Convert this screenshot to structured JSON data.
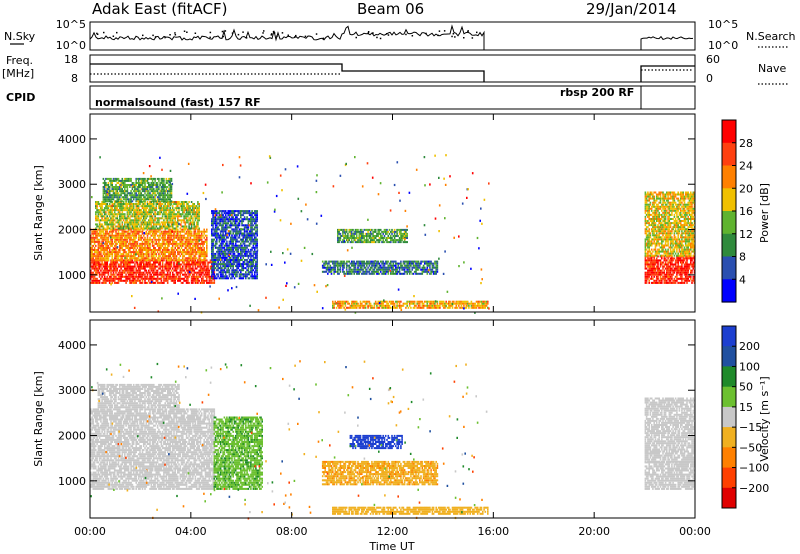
{
  "header": {
    "station": "Adak East (fitACF)",
    "beam": "Beam 06",
    "date": "29/Jan/2014"
  },
  "strips": {
    "nsky_label": "N.Sky",
    "nsky_ticks": [
      "10^5",
      "10^0"
    ],
    "nsearch_label": "N.Search",
    "freq_label_line1": "Freq.",
    "freq_label_line2": "[MHz]",
    "freq_ticks": [
      "18",
      "8"
    ],
    "nave_ticks": [
      "60",
      "0"
    ],
    "nave_label": "Nave",
    "cpid_label": "CPID",
    "cpid_programs": [
      "normalsound (fast) 157 RF",
      "rbsp 200 RF"
    ]
  },
  "colors": {
    "power_scale": [
      "#0000ff",
      "#2a4fb0",
      "#2f8a3c",
      "#5fb32f",
      "#f0c000",
      "#ff8000",
      "#ff4010",
      "#ff0000"
    ],
    "velocity_scale": [
      "#1c3fd0",
      "#2050a0",
      "#1f8a2a",
      "#6cc030",
      "#c8c8c8",
      "#f0b020",
      "#ff8000",
      "#ff4000",
      "#e00000"
    ]
  },
  "chart_data": [
    {
      "type": "heatmap",
      "panel": "power",
      "ylabel": "Slant Range [km]",
      "xlabel": "Time UT",
      "x_ticks": [
        "00:00",
        "04:00",
        "08:00",
        "12:00",
        "16:00",
        "20:00",
        "00:00"
      ],
      "y_ticks": [
        "1000",
        "2000",
        "3000",
        "4000"
      ],
      "xlim_hours": [
        0,
        24
      ],
      "ylim_km": [
        180,
        4550
      ],
      "colorbar_title": "Power [dB]",
      "colorbar_ticks": [
        "28",
        "24",
        "20",
        "16",
        "12",
        "8",
        "4"
      ],
      "data_gap_hours": [
        15.8,
        22
      ],
      "echo_regions": [
        {
          "t0": 0.0,
          "t1": 4.9,
          "r0": 800,
          "r1": 1300,
          "level": 28
        },
        {
          "t0": 0.0,
          "t1": 4.6,
          "r0": 1300,
          "r1": 2000,
          "level": 22
        },
        {
          "t0": 0.2,
          "t1": 4.3,
          "r0": 2000,
          "r1": 2600,
          "level": 16
        },
        {
          "t0": 0.5,
          "t1": 3.2,
          "r0": 2600,
          "r1": 3100,
          "level": 12
        },
        {
          "t0": 4.8,
          "t1": 6.6,
          "r0": 900,
          "r1": 2400,
          "level": 6
        },
        {
          "t0": 9.2,
          "t1": 13.8,
          "r0": 1000,
          "r1": 1300,
          "level": 8
        },
        {
          "t0": 9.8,
          "t1": 12.6,
          "r0": 1700,
          "r1": 2000,
          "level": 12
        },
        {
          "t0": 9.6,
          "t1": 15.8,
          "r0": 250,
          "r1": 400,
          "level": 20
        },
        {
          "t0": 22.0,
          "t1": 24.0,
          "r0": 800,
          "r1": 1400,
          "level": 28
        },
        {
          "t0": 22.0,
          "t1": 24.0,
          "r0": 1400,
          "r1": 2800,
          "level": 18
        }
      ]
    },
    {
      "type": "heatmap",
      "panel": "velocity",
      "ylabel": "Slant Range [km]",
      "xlabel": "Time UT",
      "x_ticks": [
        "00:00",
        "04:00",
        "08:00",
        "12:00",
        "16:00",
        "20:00",
        "00:00"
      ],
      "y_ticks": [
        "1000",
        "2000",
        "3000",
        "4000"
      ],
      "xlim_hours": [
        0,
        24
      ],
      "ylim_km": [
        180,
        4550
      ],
      "colorbar_title": "Velocity [m s⁻¹]",
      "colorbar_ticks": [
        "200",
        "100",
        "50",
        "15",
        "−15",
        "−50",
        "−100",
        "−200"
      ],
      "data_gap_hours": [
        15.8,
        22
      ],
      "echo_regions": [
        {
          "t0": 0.0,
          "t1": 4.9,
          "r0": 800,
          "r1": 2600,
          "level": 0
        },
        {
          "t0": 0.3,
          "t1": 3.5,
          "r0": 2600,
          "r1": 3100,
          "level": 0
        },
        {
          "t0": 4.9,
          "t1": 6.8,
          "r0": 800,
          "r1": 2400,
          "level": 40
        },
        {
          "t0": 9.2,
          "t1": 13.8,
          "r0": 900,
          "r1": 1400,
          "level": -40
        },
        {
          "t0": 10.3,
          "t1": 12.4,
          "r0": 1700,
          "r1": 2000,
          "level": 180
        },
        {
          "t0": 9.6,
          "t1": 15.8,
          "r0": 250,
          "r1": 400,
          "level": -30
        },
        {
          "t0": 22.0,
          "t1": 24.0,
          "r0": 800,
          "r1": 1400,
          "level": 0
        },
        {
          "t0": 22.0,
          "t1": 24.0,
          "r0": 1400,
          "r1": 2800,
          "level": 0
        }
      ]
    }
  ]
}
